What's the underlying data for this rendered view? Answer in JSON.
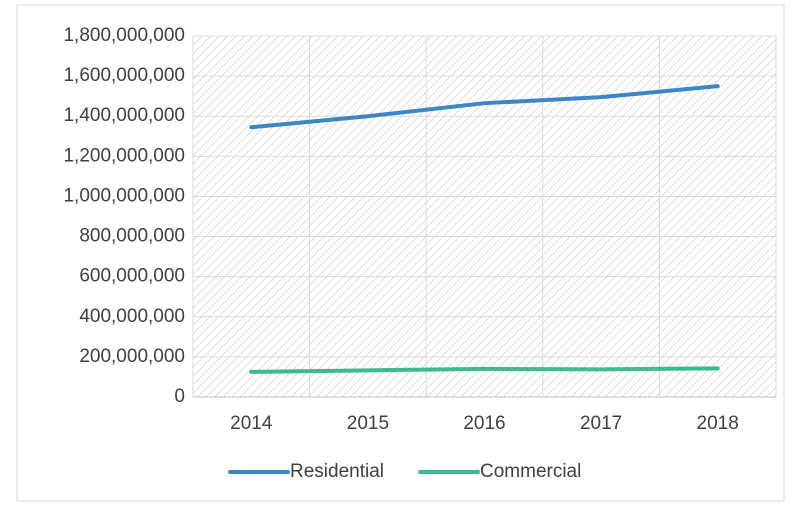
{
  "chart_data": {
    "type": "line",
    "categories": [
      "2014",
      "2015",
      "2016",
      "2017",
      "2018"
    ],
    "series": [
      {
        "name": "Residential",
        "color": "#3a87c8",
        "values": [
          1345000000,
          1400000000,
          1465000000,
          1495000000,
          1550000000
        ]
      },
      {
        "name": "Commercial",
        "color": "#3dbb8f",
        "values": [
          125000000,
          133000000,
          140000000,
          138000000,
          143000000
        ]
      }
    ],
    "ylim": [
      0,
      1800000000
    ],
    "yticks": [
      0,
      {
        "value": 200000000,
        "label": "200,000,000"
      },
      {
        "value": 400000000,
        "label": "400,000,000"
      },
      {
        "value": 600000000,
        "label": "600,000,000"
      },
      {
        "value": 800000000,
        "label": "800,000,000"
      },
      {
        "value": 1000000000,
        "label": "1,000,000,000"
      },
      {
        "value": 1200000000,
        "label": "1,200,000,000"
      },
      {
        "value": 1400000000,
        "label": "1,400,000,000"
      },
      {
        "value": 1600000000,
        "label": "1,600,000,000"
      },
      {
        "value": 1800000000,
        "label": "1,800,000,000"
      }
    ],
    "grid": true,
    "legend": "bottom"
  }
}
